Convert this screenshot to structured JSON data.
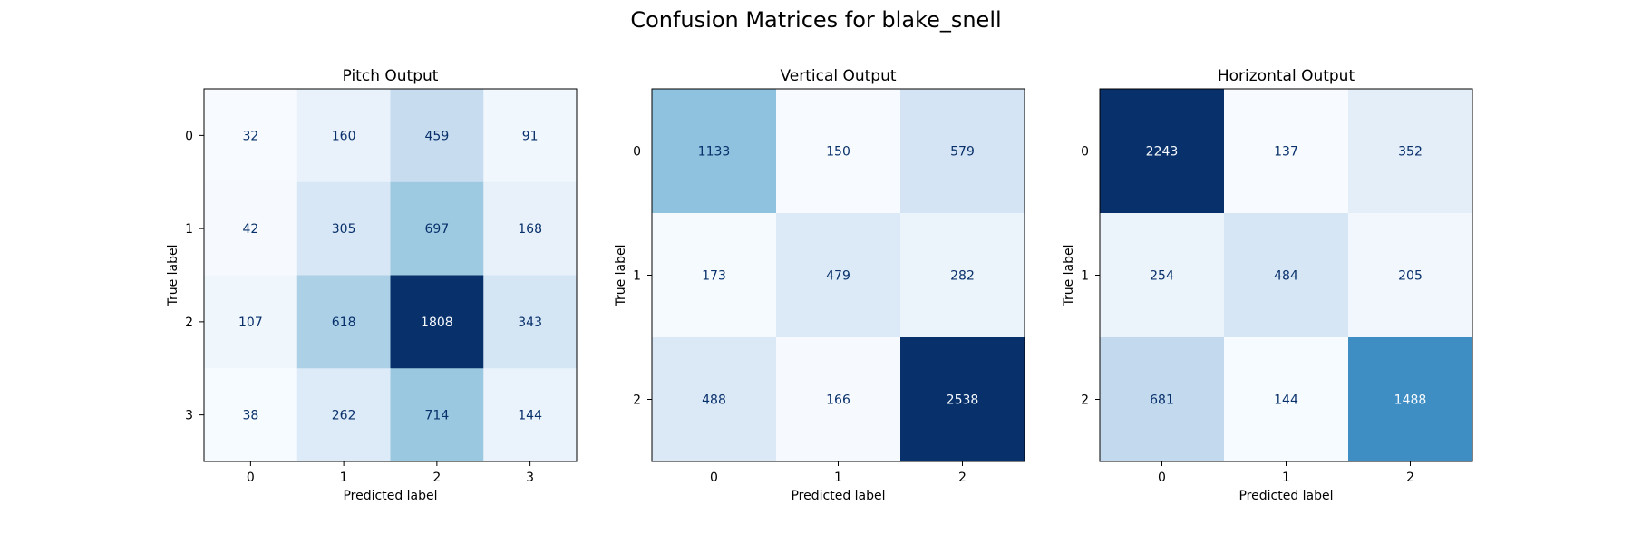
{
  "figure": {
    "title": "Confusion Matrices for blake_snell"
  },
  "chart_data": [
    {
      "type": "heatmap",
      "title": "Pitch Output",
      "xlabel": "Predicted label",
      "ylabel": "True label",
      "x_ticks": [
        "0",
        "1",
        "2",
        "3"
      ],
      "y_ticks": [
        "0",
        "1",
        "2",
        "3"
      ],
      "colormap": "Blues",
      "values": [
        [
          32,
          160,
          459,
          91
        ],
        [
          42,
          305,
          697,
          168
        ],
        [
          107,
          618,
          1808,
          343
        ],
        [
          38,
          262,
          714,
          144
        ]
      ]
    },
    {
      "type": "heatmap",
      "title": "Vertical Output",
      "xlabel": "Predicted label",
      "ylabel": "True label",
      "x_ticks": [
        "0",
        "1",
        "2"
      ],
      "y_ticks": [
        "0",
        "1",
        "2"
      ],
      "colormap": "Blues",
      "values": [
        [
          1133,
          150,
          579
        ],
        [
          173,
          479,
          282
        ],
        [
          488,
          166,
          2538
        ]
      ]
    },
    {
      "type": "heatmap",
      "title": "Horizontal Output",
      "xlabel": "Predicted label",
      "ylabel": "True label",
      "x_ticks": [
        "0",
        "1",
        "2"
      ],
      "y_ticks": [
        "0",
        "1",
        "2"
      ],
      "colormap": "Blues",
      "values": [
        [
          2243,
          137,
          352
        ],
        [
          254,
          484,
          205
        ],
        [
          681,
          144,
          1488
        ]
      ]
    }
  ],
  "colors": {
    "text_dark": "#08306b",
    "text_light": "#f7fbff",
    "axis": "#000000"
  }
}
